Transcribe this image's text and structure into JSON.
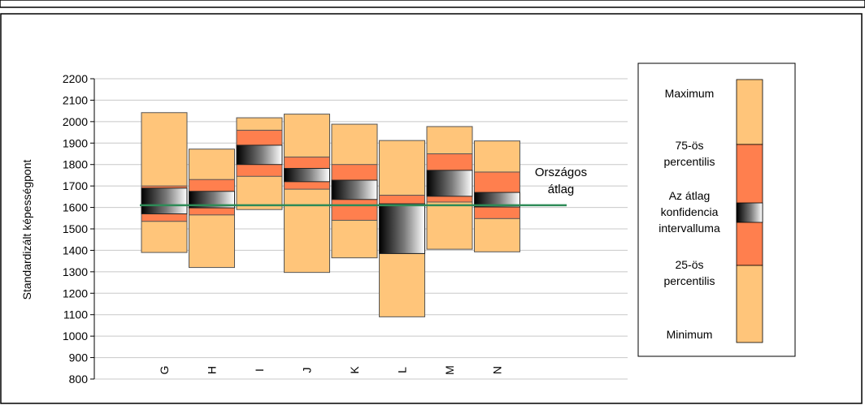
{
  "chart_data": {
    "type": "box",
    "ylabel": "Standardizált képességpont",
    "ylim": [
      800,
      2200
    ],
    "yticks": [
      800,
      900,
      1000,
      1100,
      1200,
      1300,
      1400,
      1500,
      1600,
      1700,
      1800,
      1900,
      2000,
      2100,
      2200
    ],
    "grid": true,
    "categories": [
      "G",
      "H",
      "I",
      "J",
      "K",
      "L",
      "M",
      "N"
    ],
    "boxes": [
      {
        "category": "G",
        "min": 1390,
        "p25": 1535,
        "p75": 1700,
        "max": 2042,
        "ci_low": 1570,
        "ci_high": 1690
      },
      {
        "category": "H",
        "min": 1320,
        "p25": 1565,
        "p75": 1730,
        "max": 1872,
        "ci_low": 1598,
        "ci_high": 1675
      },
      {
        "category": "I",
        "min": 1590,
        "p25": 1745,
        "p75": 1960,
        "max": 2018,
        "ci_low": 1800,
        "ci_high": 1890
      },
      {
        "category": "J",
        "min": 1297,
        "p25": 1685,
        "p75": 1835,
        "max": 2035,
        "ci_low": 1720,
        "ci_high": 1782
      },
      {
        "category": "K",
        "min": 1365,
        "p25": 1540,
        "p75": 1800,
        "max": 1988,
        "ci_low": 1637,
        "ci_high": 1727
      },
      {
        "category": "L",
        "min": 1090,
        "p25": 1385,
        "p75": 1657,
        "max": 1912,
        "ci_low": 1385,
        "ci_high": 1617
      },
      {
        "category": "M",
        "min": 1405,
        "p25": 1625,
        "p75": 1850,
        "max": 1977,
        "ci_low": 1652,
        "ci_high": 1773
      },
      {
        "category": "N",
        "min": 1393,
        "p25": 1548,
        "p75": 1765,
        "max": 1910,
        "ci_low": 1602,
        "ci_high": 1670
      }
    ],
    "national_average": 1610,
    "national_average_label": [
      "Országos",
      "átlag"
    ],
    "colors": {
      "outer": "#ffc57a",
      "inner": "#ff7f4e",
      "ci_dark": "#000000",
      "ci_light": "#ffffff",
      "average_line": "#2e8b57",
      "gridline": "#c8c8c8"
    },
    "legend": {
      "placement": "right",
      "labels": {
        "maximum": "Maximum",
        "p75": [
          "75-ös",
          "percentilis"
        ],
        "ci": [
          "Az átlag",
          "konfidencia",
          "intervalluma"
        ],
        "p25": [
          "25-ös",
          "percentilis"
        ],
        "minimum": "Minimum"
      }
    }
  }
}
